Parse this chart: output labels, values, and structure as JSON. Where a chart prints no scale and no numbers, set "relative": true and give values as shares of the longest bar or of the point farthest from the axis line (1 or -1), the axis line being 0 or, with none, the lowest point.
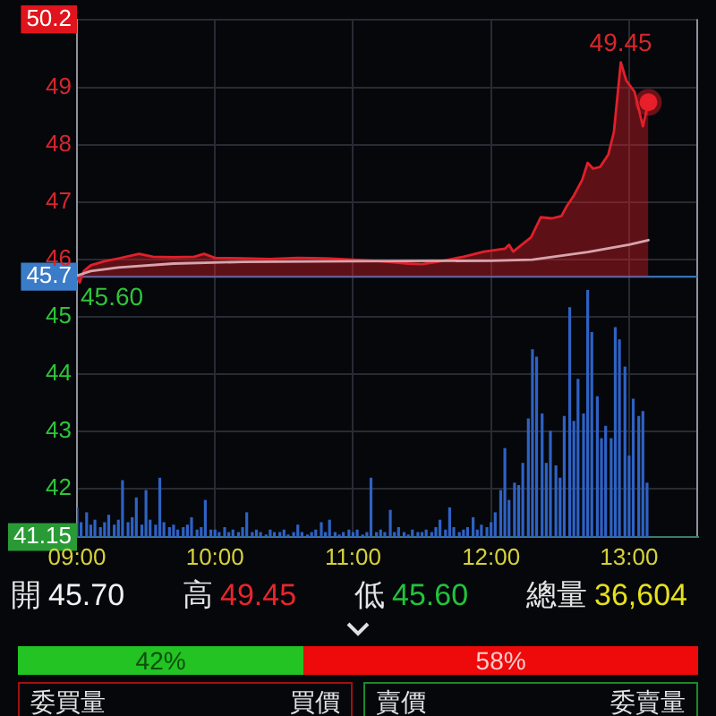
{
  "chart_data": [
    {
      "type": "line",
      "xlim": [
        9,
        13.5
      ],
      "xticks": [
        9,
        10,
        11,
        12,
        13
      ],
      "ylim": [
        41.15,
        50.2
      ],
      "yticks": [
        41.15,
        42,
        43,
        44,
        45,
        45.7,
        46,
        47,
        48,
        49,
        50.2
      ],
      "grid": true,
      "tick_labels": "y",
      "ref_lines": [
        {
          "axis": "y",
          "value": 45.7,
          "color": "#3a7cc8"
        }
      ],
      "annotations": [
        {
          "text": "49.45",
          "x": 12.94,
          "y": 49.45
        },
        {
          "text": "45.60",
          "x": 9.02,
          "y": 45.6
        }
      ],
      "series": [
        {
          "type": "area",
          "color": "#e0202a",
          "x": [
            9,
            9.02,
            9.05,
            9.1,
            9.2,
            9.3,
            9.45,
            9.55,
            9.7,
            9.85,
            9.92,
            10,
            10.2,
            10.4,
            10.6,
            10.8,
            11,
            11.2,
            11.4,
            11.5,
            11.61,
            11.8,
            11.95,
            12.1,
            12.13,
            12.16,
            12.29,
            12.36,
            12.44,
            12.51,
            12.55,
            12.6,
            12.66,
            12.7,
            12.74,
            12.79,
            12.85,
            12.89,
            12.94,
            12.98,
            13.04,
            13.1,
            13.14
          ],
          "values": [
            45.7,
            45.6,
            45.8,
            45.9,
            45.97,
            46.02,
            46.1,
            46.05,
            46.04,
            46.05,
            46.1,
            46.03,
            46.02,
            46.01,
            46.03,
            46.02,
            46,
            45.97,
            45.93,
            45.92,
            45.96,
            46.05,
            46.14,
            46.19,
            46.26,
            46.14,
            46.39,
            46.74,
            46.72,
            46.76,
            46.94,
            47.12,
            47.39,
            47.69,
            47.59,
            47.62,
            47.84,
            48.23,
            49.45,
            49.13,
            48.93,
            48.33,
            48.75
          ]
        },
        {
          "type": "line",
          "color": "#d8a4ac",
          "x": [
            9,
            9.1,
            9.3,
            9.7,
            10.2,
            11,
            12,
            12.3,
            12.7,
            13,
            13.14
          ],
          "values": [
            45.72,
            45.8,
            45.86,
            45.93,
            45.96,
            45.97,
            45.98,
            46,
            46.13,
            46.26,
            46.34
          ]
        },
        {
          "type": "scatter",
          "marker": "circle",
          "color": "#e8202a",
          "x": [
            13.14
          ],
          "values": [
            48.75
          ]
        }
      ]
    },
    {
      "type": "bar",
      "relative": true,
      "tick_labels": "x",
      "color": "#2e62c4",
      "xlim": [
        9,
        13.5
      ],
      "xticks": [
        {
          "value": 9,
          "label": "09:00"
        },
        {
          "value": 10,
          "label": "10:00"
        },
        {
          "value": 11,
          "label": "11:00"
        },
        {
          "value": 12,
          "label": "12:00"
        },
        {
          "value": 13,
          "label": "13:00"
        }
      ],
      "x": [
        9,
        9.03,
        9.07,
        9.1,
        9.13,
        9.17,
        9.2,
        9.23,
        9.27,
        9.3,
        9.33,
        9.37,
        9.4,
        9.43,
        9.47,
        9.5,
        9.53,
        9.57,
        9.6,
        9.63,
        9.67,
        9.7,
        9.73,
        9.77,
        9.8,
        9.83,
        9.87,
        9.9,
        9.93,
        9.97,
        10,
        10.03,
        10.07,
        10.1,
        10.13,
        10.17,
        10.2,
        10.23,
        10.27,
        10.3,
        10.33,
        10.37,
        10.4,
        10.43,
        10.47,
        10.5,
        10.53,
        10.57,
        10.6,
        10.63,
        10.67,
        10.7,
        10.73,
        10.77,
        10.8,
        10.83,
        10.87,
        10.9,
        10.93,
        10.97,
        11,
        11.03,
        11.07,
        11.1,
        11.13,
        11.17,
        11.2,
        11.23,
        11.27,
        11.3,
        11.33,
        11.37,
        11.4,
        11.43,
        11.47,
        11.5,
        11.53,
        11.57,
        11.6,
        11.63,
        11.67,
        11.7,
        11.73,
        11.77,
        11.8,
        11.83,
        11.87,
        11.9,
        11.93,
        11.97,
        12,
        12.03,
        12.07,
        12.1,
        12.13,
        12.17,
        12.2,
        12.23,
        12.27,
        12.3,
        12.33,
        12.37,
        12.4,
        12.43,
        12.47,
        12.5,
        12.53,
        12.57,
        12.6,
        12.63,
        12.67,
        12.7,
        12.73,
        12.77,
        12.8,
        12.83,
        12.87,
        12.9,
        12.93,
        12.97,
        13,
        13.03,
        13.07,
        13.1,
        13.13
      ],
      "values": [
        0.12,
        0.06,
        0.1,
        0.05,
        0.07,
        0.04,
        0.06,
        0.09,
        0.05,
        0.07,
        0.23,
        0.06,
        0.08,
        0.16,
        0.05,
        0.19,
        0.07,
        0.05,
        0.24,
        0.06,
        0.04,
        0.05,
        0.03,
        0.04,
        0.05,
        0.08,
        0.03,
        0.04,
        0.15,
        0.03,
        0.03,
        0.02,
        0.04,
        0.02,
        0.03,
        0.02,
        0.04,
        0.1,
        0.02,
        0.03,
        0.02,
        0.01,
        0.03,
        0.02,
        0.02,
        0.03,
        0.01,
        0.02,
        0.05,
        0.02,
        0.01,
        0.02,
        0.03,
        0.06,
        0.02,
        0.07,
        0.02,
        0.01,
        0.02,
        0.03,
        0.02,
        0.03,
        0.01,
        0.02,
        0.24,
        0.02,
        0.03,
        0.02,
        0.11,
        0.02,
        0.04,
        0.02,
        0.01,
        0.03,
        0.02,
        0.02,
        0.03,
        0.02,
        0.04,
        0.07,
        0.03,
        0.12,
        0.04,
        0.02,
        0.03,
        0.04,
        0.08,
        0.03,
        0.05,
        0.04,
        0.06,
        0.1,
        0.19,
        0.36,
        0.15,
        0.22,
        0.21,
        0.3,
        0.48,
        0.76,
        0.73,
        0.5,
        0.3,
        0.43,
        0.29,
        0.24,
        0.49,
        0.93,
        0.47,
        0.64,
        0.5,
        1,
        0.83,
        0.57,
        0.4,
        0.45,
        0.4,
        0.85,
        0.8,
        0.69,
        0.33,
        0.56,
        0.49,
        0.51,
        0.22
      ]
    },
    {
      "type": "other",
      "annotations": [
        "開",
        "45.70",
        "高",
        "49.45",
        "低",
        "45.60",
        "總量",
        "36,604"
      ]
    },
    {
      "type": "bar",
      "orientation": "horizontal",
      "stacked": true,
      "categories": [
        null
      ],
      "xlim": [
        0,
        100
      ],
      "tick_labels": false,
      "series": [
        {
          "color": "#22c322",
          "values": [
            42
          ],
          "value_labels": [
            "42%"
          ]
        },
        {
          "color": "#ee0a0a",
          "values": [
            58
          ],
          "value_labels": [
            "58%"
          ]
        }
      ]
    },
    {
      "type": "other",
      "annotations": [
        "委買量",
        "買價",
        "賣價",
        "委賣量"
      ]
    }
  ]
}
